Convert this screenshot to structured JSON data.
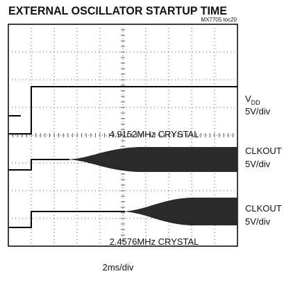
{
  "chart_data": {
    "type": "oscilloscope",
    "title": "EXTERNAL OSCILLATOR STARTUP TIME",
    "subtitle": "MX7705 toc20",
    "channels": [
      {
        "name": "V",
        "name_sub": "DD",
        "scale": "5V/div"
      },
      {
        "name": "CLKOUT",
        "scale": "5V/div"
      },
      {
        "name": "CLKOUT",
        "scale": "5V/div"
      }
    ],
    "annotations": [
      "4.9152MHz CRYSTAL",
      "2.4576MHz CRYSTAL"
    ],
    "x_label": "2ms/div"
  }
}
